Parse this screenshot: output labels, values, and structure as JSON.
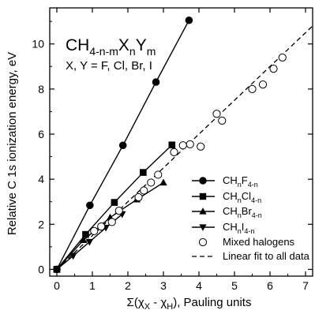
{
  "chart_data": {
    "type": "scatter",
    "title": "",
    "annotation": {
      "formula": {
        "base": "CH",
        "sub1": "4-n-m",
        "x": "X",
        "sub2": "n",
        "y": "Y",
        "sub3": "m"
      },
      "line2": "X, Y = F, Cl, Br, I"
    },
    "xlabel": {
      "prefix": "Σ(χ",
      "sub1": "X",
      "mid": " - χ",
      "sub2": "H",
      "suffix": "), Pauling units"
    },
    "ylabel": "Relative C 1s ionization energy, eV",
    "xlim": [
      -0.2,
      7.2
    ],
    "ylim": [
      -0.3,
      11.6
    ],
    "xticks": [
      "0",
      "1",
      "2",
      "3",
      "4",
      "5",
      "6",
      "7"
    ],
    "yticks": [
      "0",
      "2",
      "4",
      "6",
      "8",
      "10"
    ],
    "grid": false,
    "legend_position": "lower-right",
    "series": [
      {
        "name": "CHnF4-n",
        "legend": {
          "base": "CH",
          "sub1": "n",
          "el": "F",
          "sub2": "4-n"
        },
        "marker": "circle-filled",
        "connected": true,
        "x": [
          0,
          0.93,
          1.86,
          2.79,
          3.72
        ],
        "y": [
          0,
          2.84,
          5.5,
          8.31,
          11.05
        ]
      },
      {
        "name": "CHnCl4-n",
        "legend": {
          "base": "CH",
          "sub1": "n",
          "el": "Cl",
          "sub2": "4-n"
        },
        "marker": "square-filled",
        "connected": true,
        "x": [
          0,
          0.81,
          1.62,
          2.43,
          3.24
        ],
        "y": [
          0,
          1.55,
          2.97,
          4.3,
          5.52
        ]
      },
      {
        "name": "CHnBr4-n",
        "legend": {
          "base": "CH",
          "sub1": "n",
          "el": "Br",
          "sub2": "4-n"
        },
        "marker": "triangle-up-filled",
        "connected": true,
        "x": [
          0,
          0.75,
          1.5,
          2.25,
          3.0
        ],
        "y": [
          0,
          1.3,
          2.3,
          3.1,
          3.85
        ]
      },
      {
        "name": "CHnI4-n",
        "legend": {
          "base": "CH",
          "sub1": "n",
          "el": "I",
          "sub2": "4-n"
        },
        "marker": "triangle-down-filled",
        "connected": true,
        "x": [
          0,
          0.46,
          0.92,
          1.38,
          1.84
        ],
        "y": [
          0,
          0.6,
          1.22,
          1.85,
          2.45
        ]
      },
      {
        "name": "Mixed halogens",
        "legend_text": "Mixed halogens",
        "marker": "circle-open",
        "connected": false,
        "x": [
          1.05,
          1.25,
          1.55,
          1.75,
          2.3,
          2.45,
          2.65,
          2.85,
          3.3,
          3.55,
          3.75,
          4.05,
          4.5,
          4.65,
          5.5,
          5.8,
          6.1,
          6.35
        ],
        "y": [
          1.7,
          1.9,
          2.1,
          2.6,
          3.2,
          3.5,
          3.85,
          4.2,
          5.2,
          5.5,
          5.55,
          5.45,
          6.9,
          6.6,
          8.0,
          8.2,
          8.9,
          9.4
        ]
      }
    ],
    "fit_line": {
      "name": "Linear fit to all data",
      "legend_text": "Linear fit to all data",
      "style": "dashed",
      "x": [
        0,
        7.2
      ],
      "y": [
        0,
        10.8
      ]
    }
  }
}
